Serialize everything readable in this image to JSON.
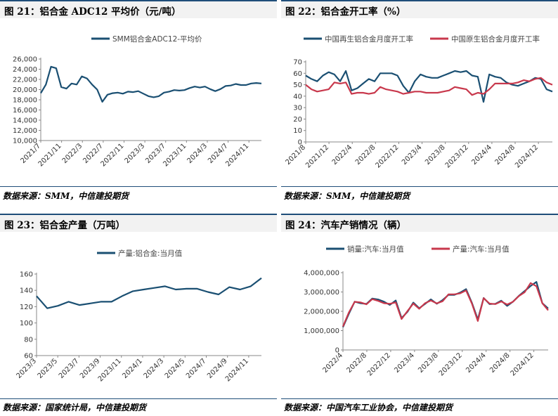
{
  "panels": [
    {
      "title": "图 21：铝合金 ADC12 平均价（元/吨）",
      "source": "数据来源：SMM，中信建投期货"
    },
    {
      "title": "图 22：铝合金开工率（%）",
      "source": "数据来源：SMM，中信建投期货"
    },
    {
      "title": "图 23：铝合金产量（万吨）",
      "source": "数据来源：国家统计局，中信建投期货"
    },
    {
      "title": "图 24：汽车产销情况（辆）",
      "source": "数据来源：中国汽车工业协会，中信建投期货"
    }
  ],
  "colors": {
    "navy": "#1a4f72",
    "red": "#c8384c",
    "title_rule": "#1f4e79"
  },
  "chart_data": [
    {
      "type": "line",
      "title": "",
      "series": [
        {
          "name": "SMM铝合金ADC12-平均价",
          "x": [
            "2021-07",
            "2021-08",
            "2021-09",
            "2021-10",
            "2021-11",
            "2021-12",
            "2022-01",
            "2022-02",
            "2022-03",
            "2022-04",
            "2022-05",
            "2022-06",
            "2022-07",
            "2022-08",
            "2022-09",
            "2022-10",
            "2022-11",
            "2022-12",
            "2023-01",
            "2023-02",
            "2023-03",
            "2023-04",
            "2023-05",
            "2023-06",
            "2023-07",
            "2023-08",
            "2023-09",
            "2023-10",
            "2023-11",
            "2023-12",
            "2024-01",
            "2024-02",
            "2024-03",
            "2024-04",
            "2024-05",
            "2024-06",
            "2024-07",
            "2024-08",
            "2024-09",
            "2024-10",
            "2024-11",
            "2024-12",
            "2025-01",
            "2025-02"
          ],
          "values": [
            19300,
            21000,
            24500,
            24200,
            20500,
            20200,
            21200,
            21000,
            22600,
            22200,
            21000,
            20000,
            17600,
            19000,
            19300,
            19400,
            19200,
            19600,
            19500,
            19700,
            19200,
            18700,
            18500,
            18700,
            19400,
            19600,
            19900,
            19800,
            19900,
            20300,
            20600,
            20400,
            20600,
            20100,
            19700,
            20100,
            20700,
            20800,
            21100,
            20900,
            20900,
            21200,
            21300,
            21200
          ]
        }
      ],
      "x_ticks": [
        "2021/7",
        "2021/11",
        "2022/3",
        "2022/7",
        "2022/11",
        "2023/3",
        "2023/7",
        "2023/11",
        "2024/3",
        "2024/7",
        "2024/11"
      ],
      "ylim": [
        10000,
        26000
      ],
      "y_ticks": [
        "10,000",
        "12,000",
        "14,000",
        "16,000",
        "18,000",
        "20,000",
        "22,000",
        "24,000",
        "26,000"
      ],
      "legend": "top"
    },
    {
      "type": "line",
      "title": "",
      "x_ticks": [
        "2021/8",
        "2021/12",
        "2022/4",
        "2022/8",
        "2022/12",
        "2023/4",
        "2023/8",
        "2023/12",
        "2024/4",
        "2024/8",
        "2024/12"
      ],
      "ylim": [
        0,
        70
      ],
      "y_ticks": [
        "0",
        "10",
        "20",
        "30",
        "40",
        "50",
        "60",
        "70"
      ],
      "series": [
        {
          "name": "中国再生铝合金月度开工率",
          "values": [
            58,
            55,
            53,
            58,
            61,
            59,
            53,
            62,
            45,
            47,
            51,
            55,
            53,
            60,
            60,
            60,
            58,
            49,
            43,
            53,
            59,
            57,
            56,
            56,
            58,
            60,
            62,
            61,
            62,
            58,
            57,
            35,
            59,
            57,
            56,
            52,
            50,
            49,
            51,
            53,
            56,
            55,
            46,
            44
          ]
        },
        {
          "name": "中国原生铝合金月度开工率",
          "values": [
            50,
            46,
            44,
            45,
            46,
            52,
            51,
            52,
            42,
            43,
            43,
            42,
            43,
            48,
            46,
            45,
            44,
            42,
            43,
            44,
            44,
            43,
            43,
            43,
            44,
            45,
            48,
            47,
            46,
            41,
            43,
            42,
            46,
            51,
            51,
            51,
            51,
            52,
            54,
            53,
            55,
            56,
            52,
            50
          ]
        }
      ],
      "legend": "top"
    },
    {
      "type": "line",
      "title": "",
      "x_ticks": [
        "2023/3",
        "2023/5",
        "2023/7",
        "2023/9",
        "2023/11",
        "2024/1",
        "2024/3",
        "2024/5",
        "2024/7",
        "2024/9",
        "2024/11"
      ],
      "ylim": [
        60,
        160
      ],
      "y_ticks": [
        "60",
        "80",
        "100",
        "120",
        "140",
        "160"
      ],
      "series": [
        {
          "name": "产量:铝合金:当月值",
          "values": [
            133,
            118,
            121,
            126,
            122,
            124,
            126,
            126,
            133,
            139,
            141,
            143,
            145,
            141,
            142,
            142,
            138,
            135,
            144,
            141,
            145,
            155
          ]
        }
      ],
      "legend": "top"
    },
    {
      "type": "line",
      "title": "",
      "x_ticks": [
        "2022/4",
        "2022/8",
        "2022/12",
        "2023/4",
        "2023/8",
        "2023/12",
        "2024/4",
        "2024/8",
        "2024/12"
      ],
      "ylim": [
        0,
        4000000
      ],
      "y_ticks": [
        "0",
        "1,000,000",
        "2,000,000",
        "3,000,000",
        "4,000,000"
      ],
      "series": [
        {
          "name": "销量:汽车:当月值",
          "values": [
            1180000,
            1860000,
            2500000,
            2420000,
            2380000,
            2660000,
            2610000,
            2500000,
            2330000,
            2560000,
            1650000,
            1970000,
            2450000,
            2160000,
            2380000,
            2620000,
            2390000,
            2580000,
            2850000,
            2850000,
            2970000,
            3150000,
            2440000,
            1580000,
            2690000,
            2370000,
            2390000,
            2550000,
            2280000,
            2500000,
            2800000,
            3050000,
            3310000,
            3520000,
            2420000,
            2150000
          ]
        },
        {
          "name": "产量:汽车:当月值",
          "values": [
            1210000,
            1930000,
            2490000,
            2460000,
            2360000,
            2630000,
            2540000,
            2420000,
            2390000,
            2460000,
            1600000,
            2010000,
            2400000,
            2130000,
            2420000,
            2560000,
            2410000,
            2520000,
            2880000,
            2880000,
            2930000,
            3080000,
            2400000,
            1500000,
            2680000,
            2400000,
            2370000,
            2510000,
            2350000,
            2490000,
            2790000,
            2990000,
            3460000,
            3300000,
            2420000,
            2050000
          ]
        }
      ],
      "legend": "top"
    }
  ]
}
